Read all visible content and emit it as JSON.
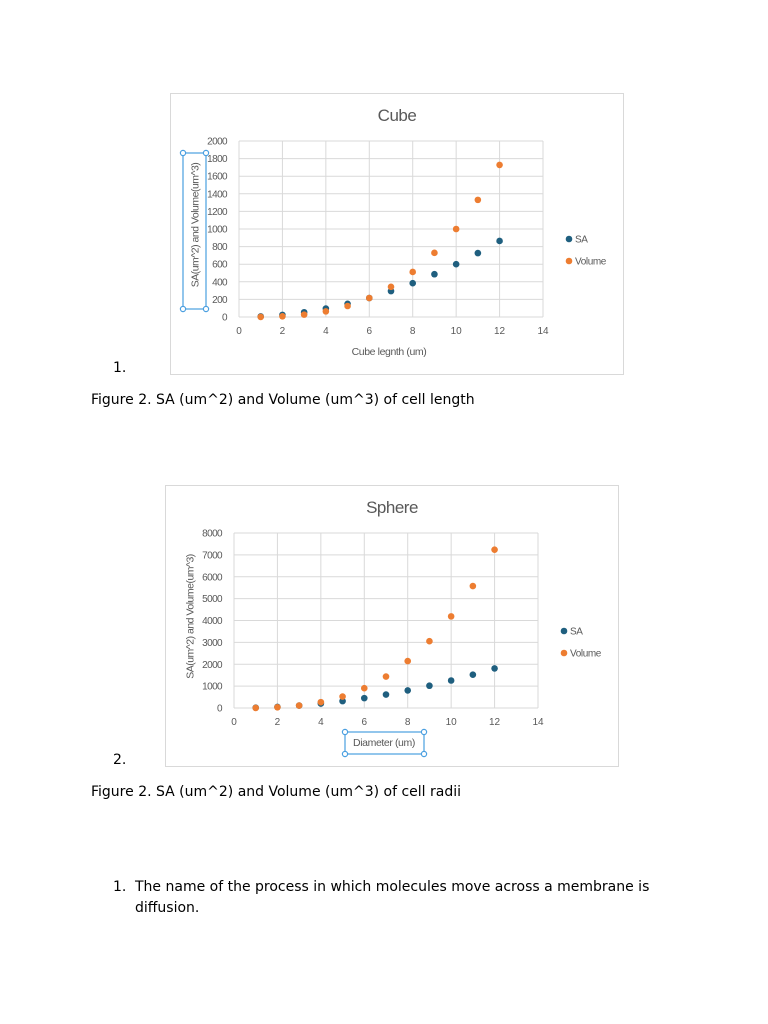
{
  "document": {
    "item1_number": "1.",
    "item2_number": "2.",
    "caption1": "Figure 2. SA (um^2) and Volume (um^3) of cell length",
    "caption2": "Figure 2. SA (um^2) and Volume (um^3) of cell radii",
    "question_number": "1.",
    "question_text": "The name of the process in which molecules move across a membrane is diffusion."
  },
  "colors": {
    "sa": "#1f5f7f",
    "volume": "#ed7d31",
    "grid": "#d9d9d9",
    "axis_text": "#595959",
    "title_text": "#595959",
    "selection": "#4a9fe0"
  },
  "chart_data": [
    {
      "type": "scatter",
      "title": "Cube",
      "xlabel": "Cube legnth (um)",
      "ylabel": "SA(um^2) and Volume(um^3)",
      "xlim": [
        0,
        14
      ],
      "ylim": [
        0,
        2000
      ],
      "xticks": [
        "0",
        "2",
        "4",
        "6",
        "8",
        "10",
        "12",
        "14"
      ],
      "yticks": [
        "0",
        "200",
        "400",
        "600",
        "800",
        "1000",
        "1200",
        "1400",
        "1600",
        "1800",
        "2000"
      ],
      "grid": true,
      "legend_position": "right",
      "selected_label": "ylabel",
      "series": [
        {
          "name": "SA",
          "x": [
            1,
            2,
            3,
            4,
            5,
            6,
            7,
            8,
            9,
            10,
            11,
            12
          ],
          "y": [
            6,
            24,
            54,
            96,
            150,
            216,
            294,
            384,
            486,
            600,
            726,
            864
          ]
        },
        {
          "name": "Volume",
          "x": [
            1,
            2,
            3,
            4,
            5,
            6,
            7,
            8,
            9,
            10,
            11,
            12
          ],
          "y": [
            1,
            8,
            27,
            64,
            125,
            216,
            343,
            512,
            729,
            1000,
            1331,
            1728
          ]
        }
      ]
    },
    {
      "type": "scatter",
      "title": "Sphere",
      "xlabel": "Diameter (um)",
      "ylabel": "SA(um^2) and Volume(um^3)",
      "xlim": [
        0,
        14
      ],
      "ylim": [
        0,
        8000
      ],
      "xticks": [
        "0",
        "2",
        "4",
        "6",
        "8",
        "10",
        "12",
        "14"
      ],
      "yticks": [
        "0",
        "1000",
        "2000",
        "3000",
        "4000",
        "5000",
        "6000",
        "7000",
        "8000"
      ],
      "grid": true,
      "legend_position": "right",
      "selected_label": "xlabel",
      "series": [
        {
          "name": "SA",
          "x": [
            1,
            2,
            3,
            4,
            5,
            6,
            7,
            8,
            9,
            10,
            11,
            12
          ],
          "y": [
            12.6,
            50.3,
            113,
            201,
            314,
            452,
            616,
            804,
            1018,
            1257,
            1521,
            1810
          ]
        },
        {
          "name": "Volume",
          "x": [
            1,
            2,
            3,
            4,
            5,
            6,
            7,
            8,
            9,
            10,
            11,
            12
          ],
          "y": [
            4.2,
            33.5,
            113,
            268,
            524,
            905,
            1437,
            2145,
            3054,
            4189,
            5575,
            7238
          ]
        }
      ]
    }
  ]
}
